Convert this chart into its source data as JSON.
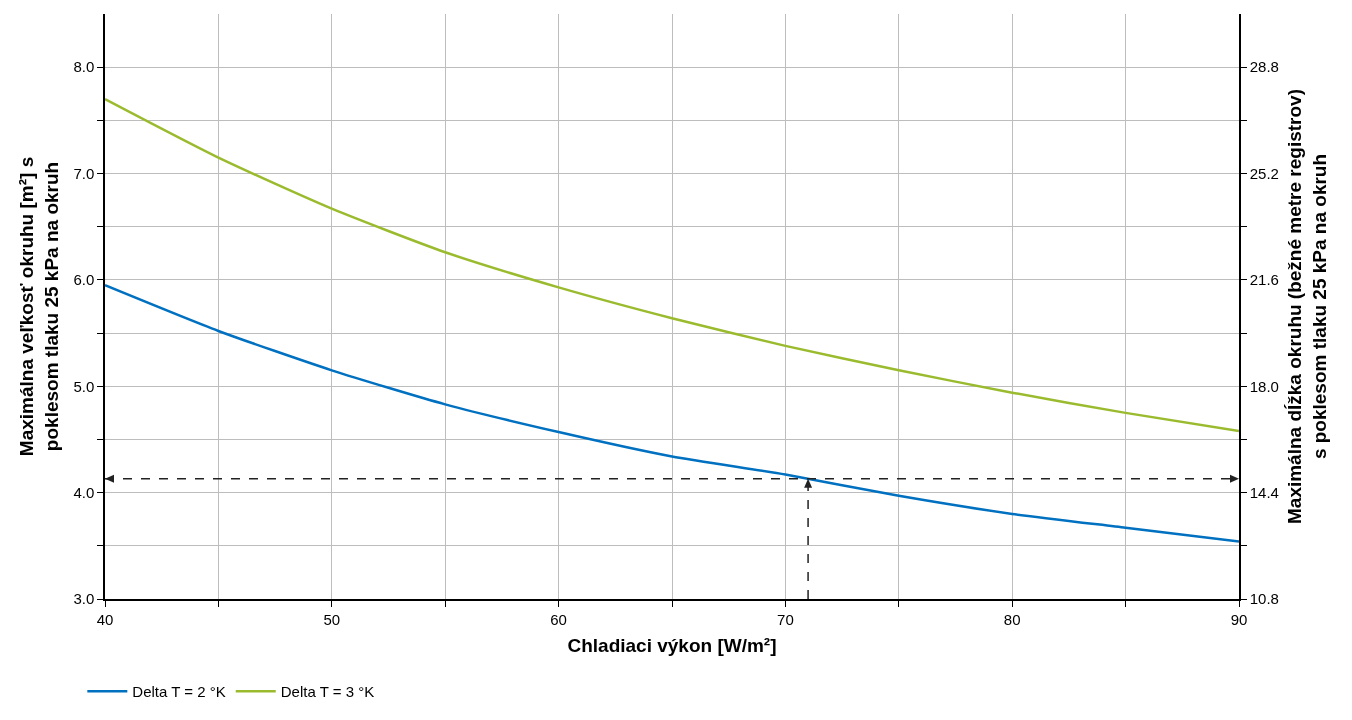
{
  "chart_data": {
    "type": "line",
    "xlabel": "Chladiaci výkon [W/m²]",
    "ylabel": "Maximálna veľkosť okruhu [m²] s\npoklesom tlaku 25 kPa na okruh",
    "y2label": "Maximálna dĺžka okruhu (bežné metre registrov)\ns poklesom tlaku 25 kPa na okruh",
    "x": [
      40,
      45,
      50,
      55,
      60,
      65,
      70,
      75,
      80,
      85,
      90
    ],
    "series": [
      {
        "name": "Delta T = 2 °K",
        "color": "#0070c0",
        "values": [
          5.95,
          5.52,
          5.15,
          4.83,
          4.57,
          4.34,
          4.17,
          3.97,
          3.8,
          3.67,
          3.54
        ]
      },
      {
        "name": "Delta T = 3 °K",
        "color": "#9bbb2f",
        "values": [
          7.7,
          7.15,
          6.67,
          6.26,
          5.93,
          5.64,
          5.38,
          5.15,
          4.94,
          4.75,
          4.58
        ]
      }
    ],
    "xlim": [
      40,
      90
    ],
    "xticks": [
      40,
      {
        "value": 45,
        "label": null
      },
      50,
      {
        "value": 55,
        "label": null
      },
      60,
      {
        "value": 65,
        "label": null
      },
      70,
      {
        "value": 75,
        "label": null
      },
      80,
      {
        "value": 85,
        "label": null
      },
      90
    ],
    "ylim": [
      3,
      8.5
    ],
    "yticks": [
      {
        "value": 3,
        "label": "3.0"
      },
      {
        "value": 3.5,
        "label": null
      },
      {
        "value": 4,
        "label": "4.0"
      },
      {
        "value": 4.5,
        "label": null
      },
      {
        "value": 5,
        "label": "5.0"
      },
      {
        "value": 5.5,
        "label": null
      },
      {
        "value": 6,
        "label": "6.0"
      },
      {
        "value": 6.5,
        "label": null
      },
      {
        "value": 7,
        "label": "7.0"
      },
      {
        "value": 7.5,
        "label": null
      },
      {
        "value": 8,
        "label": "8.0"
      }
    ],
    "y2lim": [
      10.8,
      30.6
    ],
    "y2ticks": [
      10.8,
      {
        "value": 12.6,
        "label": null
      },
      14.4,
      {
        "value": 16.2,
        "label": null
      },
      {
        "value": 18,
        "label": "18.0"
      },
      {
        "value": 19.8,
        "label": null
      },
      21.6,
      {
        "value": 23.4,
        "label": null
      },
      25.2,
      {
        "value": 27,
        "label": null
      },
      28.8
    ],
    "ref_lines": [
      {
        "axis": "y",
        "value": 4.13,
        "color": "#222222",
        "line_style": "dashed"
      },
      {
        "axis": "x",
        "value": 71,
        "color": "#222222",
        "line_style": "dashed"
      }
    ],
    "grid": true,
    "legend": "bottom left",
    "marker": "none",
    "line_style": "solid"
  }
}
